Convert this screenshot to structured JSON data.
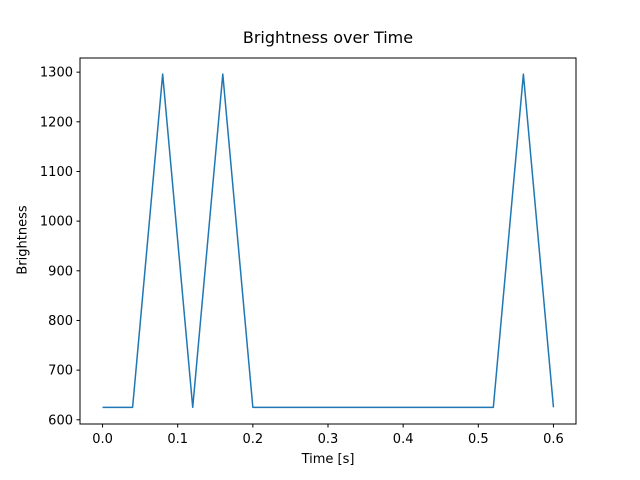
{
  "figure": {
    "title": "Brightness over Time",
    "xlabel": "Time [s]",
    "ylabel": "Brightness"
  },
  "chart_data": {
    "type": "line",
    "title": "Brightness over Time",
    "xlabel": "Time [s]",
    "ylabel": "Brightness",
    "x": [
      0.0,
      0.04,
      0.08,
      0.12,
      0.16,
      0.2,
      0.24,
      0.28,
      0.32,
      0.36,
      0.4,
      0.44,
      0.48,
      0.52,
      0.56,
      0.6
    ],
    "y": [
      625,
      625,
      1296,
      625,
      1296,
      625,
      625,
      625,
      625,
      625,
      625,
      625,
      625,
      625,
      1296,
      625
    ],
    "xlim": [
      -0.03,
      0.63
    ],
    "ylim": [
      591.5,
      1328.5
    ],
    "x_ticks": [
      0.0,
      0.1,
      0.2,
      0.3,
      0.4,
      0.5,
      0.6
    ],
    "x_tick_labels": [
      "0.0",
      "0.1",
      "0.2",
      "0.3",
      "0.4",
      "0.5",
      "0.6"
    ],
    "y_ticks": [
      600,
      700,
      800,
      900,
      1000,
      1100,
      1200,
      1300
    ],
    "y_tick_labels": [
      "600",
      "700",
      "800",
      "900",
      "1000",
      "1100",
      "1200",
      "1300"
    ],
    "line_color": "#1f77b4",
    "line_width": 1.5,
    "spine_color": "#000000",
    "grid": false,
    "legend": "none"
  }
}
